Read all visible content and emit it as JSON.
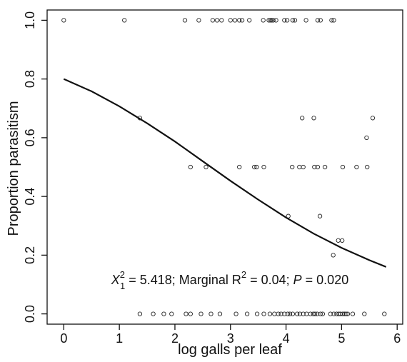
{
  "chart_data": {
    "type": "scatter",
    "title": "",
    "xlabel": "log galls per leaf",
    "ylabel": "Proportion parasitism",
    "xlim": [
      -0.3,
      6.1
    ],
    "ylim": [
      -0.035,
      1.035
    ],
    "xticks": [
      0,
      1,
      2,
      3,
      4,
      5,
      6
    ],
    "xtick_labels": [
      "0",
      "1",
      "2",
      "3",
      "4",
      "5",
      "6"
    ],
    "yticks": [
      0.0,
      0.2,
      0.4,
      0.6,
      0.8,
      1.0
    ],
    "ytick_labels": [
      "0.0",
      "0.2",
      "0.4",
      "0.6",
      "0.8",
      "1.0"
    ],
    "grid": false,
    "series": [
      {
        "type": "scatter",
        "marker": "open-circle",
        "points": [
          [
            0.0,
            1.0
          ],
          [
            1.09,
            1.0
          ],
          [
            2.18,
            1.0
          ],
          [
            2.43,
            1.0
          ],
          [
            2.68,
            1.0
          ],
          [
            2.76,
            1.0
          ],
          [
            2.84,
            1.0
          ],
          [
            3.0,
            1.0
          ],
          [
            3.08,
            1.0
          ],
          [
            3.16,
            1.0
          ],
          [
            3.21,
            1.0
          ],
          [
            3.34,
            1.0
          ],
          [
            3.59,
            1.0
          ],
          [
            3.69,
            1.0
          ],
          [
            3.72,
            1.0
          ],
          [
            3.74,
            1.0
          ],
          [
            3.77,
            1.0
          ],
          [
            3.82,
            1.0
          ],
          [
            3.97,
            1.0
          ],
          [
            4.02,
            1.0
          ],
          [
            4.12,
            1.0
          ],
          [
            4.16,
            1.0
          ],
          [
            4.36,
            1.0
          ],
          [
            4.57,
            1.0
          ],
          [
            4.62,
            1.0
          ],
          [
            4.82,
            1.0
          ],
          [
            4.86,
            1.0
          ],
          [
            1.37,
            0.667
          ],
          [
            4.29,
            0.667
          ],
          [
            4.5,
            0.667
          ],
          [
            5.56,
            0.667
          ],
          [
            5.45,
            0.6
          ],
          [
            2.28,
            0.5
          ],
          [
            2.56,
            0.5
          ],
          [
            3.16,
            0.5
          ],
          [
            3.43,
            0.5
          ],
          [
            3.47,
            0.5
          ],
          [
            3.6,
            0.5
          ],
          [
            4.11,
            0.5
          ],
          [
            4.24,
            0.5
          ],
          [
            4.31,
            0.5
          ],
          [
            4.51,
            0.5
          ],
          [
            4.57,
            0.5
          ],
          [
            4.7,
            0.5
          ],
          [
            5.02,
            0.5
          ],
          [
            5.27,
            0.5
          ],
          [
            5.46,
            0.5
          ],
          [
            4.04,
            0.333
          ],
          [
            4.61,
            0.333
          ],
          [
            4.94,
            0.25
          ],
          [
            5.01,
            0.25
          ],
          [
            4.85,
            0.2
          ],
          [
            1.37,
            0.0
          ],
          [
            1.61,
            0.0
          ],
          [
            1.8,
            0.0
          ],
          [
            1.94,
            0.0
          ],
          [
            2.2,
            0.0
          ],
          [
            2.28,
            0.0
          ],
          [
            2.47,
            0.0
          ],
          [
            2.65,
            0.0
          ],
          [
            2.81,
            0.0
          ],
          [
            3.1,
            0.0
          ],
          [
            3.3,
            0.0
          ],
          [
            3.48,
            0.0
          ],
          [
            3.6,
            0.0
          ],
          [
            3.71,
            0.0
          ],
          [
            3.79,
            0.0
          ],
          [
            3.86,
            0.0
          ],
          [
            3.91,
            0.0
          ],
          [
            3.97,
            0.0
          ],
          [
            4.03,
            0.0
          ],
          [
            4.07,
            0.0
          ],
          [
            4.12,
            0.0
          ],
          [
            4.2,
            0.0
          ],
          [
            4.25,
            0.0
          ],
          [
            4.31,
            0.0
          ],
          [
            4.37,
            0.0
          ],
          [
            4.44,
            0.0
          ],
          [
            4.49,
            0.0
          ],
          [
            4.52,
            0.0
          ],
          [
            4.56,
            0.0
          ],
          [
            4.62,
            0.0
          ],
          [
            4.66,
            0.0
          ],
          [
            4.8,
            0.0
          ],
          [
            4.86,
            0.0
          ],
          [
            4.91,
            0.0
          ],
          [
            4.95,
            0.0
          ],
          [
            4.98,
            0.0
          ],
          [
            5.02,
            0.0
          ],
          [
            5.05,
            0.0
          ],
          [
            5.08,
            0.0
          ],
          [
            5.11,
            0.0
          ],
          [
            5.2,
            0.0
          ],
          [
            5.41,
            0.0
          ],
          [
            5.77,
            0.0
          ]
        ]
      },
      {
        "type": "line",
        "style": "solid",
        "x": [
          0.0,
          0.5,
          1.0,
          1.5,
          2.0,
          2.5,
          3.0,
          3.5,
          4.0,
          4.5,
          5.0,
          5.5,
          5.8
        ],
        "y": [
          0.8,
          0.758,
          0.707,
          0.649,
          0.587,
          0.52,
          0.453,
          0.389,
          0.328,
          0.273,
          0.225,
          0.183,
          0.16
        ]
      }
    ],
    "annotation": {
      "stat": "X",
      "stat_sup": "2",
      "stat_sub": "1",
      "stat_value": " = 5.418; Marginal R",
      "r2_sup": "2",
      "r2_value": " = 0.04; ",
      "p_label": "P",
      "p_value": " = 0.020",
      "position": "lower-center"
    }
  }
}
